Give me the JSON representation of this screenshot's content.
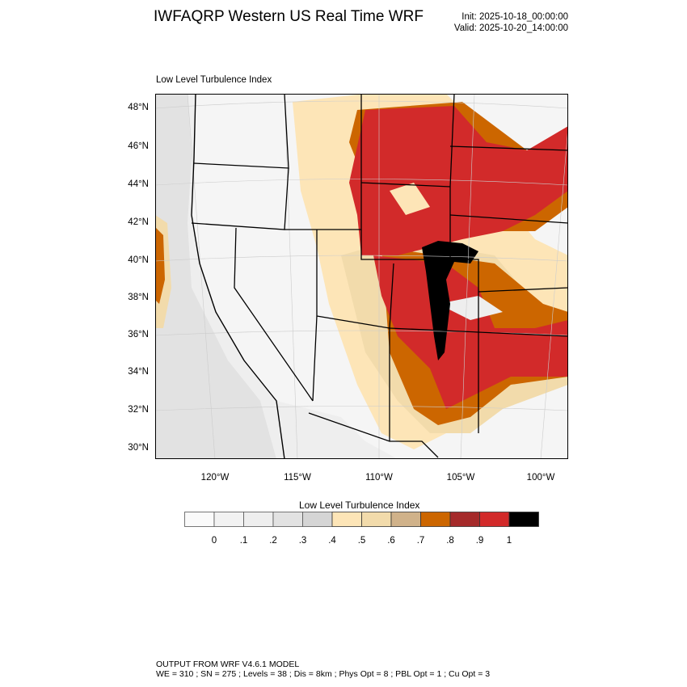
{
  "header": {
    "title": "IWFAQRP Western US Real Time WRF",
    "init": "Init: 2025-10-18_00:00:00",
    "valid": "Valid: 2025-10-20_14:00:00"
  },
  "map": {
    "subtitle": "Low Level Turbulence Index",
    "lat_labels": [
      "48°N",
      "46°N",
      "44°N",
      "42°N",
      "40°N",
      "38°N",
      "36°N",
      "34°N",
      "32°N",
      "30°N"
    ],
    "lon_labels": [
      "120°W",
      "115°W",
      "110°W",
      "105°W",
      "100°W"
    ]
  },
  "colorbar": {
    "title": "Low Level Turbulence Index",
    "labels": [
      "0",
      ".1",
      ".2",
      ".3",
      ".4",
      ".5",
      ".6",
      ".7",
      ".8",
      ".9",
      "1"
    ],
    "colors": [
      "#fafafa",
      "#f2f2f2",
      "#eeeeee",
      "#e2e2e2",
      "#d5d5d5",
      "#fde5b7",
      "#f2dbab",
      "#d0b28a",
      "#cc6600",
      "#a52a2a",
      "#d22a2a",
      "#000000"
    ]
  },
  "footer": {
    "line1": "OUTPUT FROM WRF V4.6.1 MODEL",
    "line2": "WE = 310 ; SN = 275 ; Levels = 38 ; Dis = 8km ; Phys Opt = 8 ; PBL Opt = 1 ; Cu Opt = 3"
  }
}
